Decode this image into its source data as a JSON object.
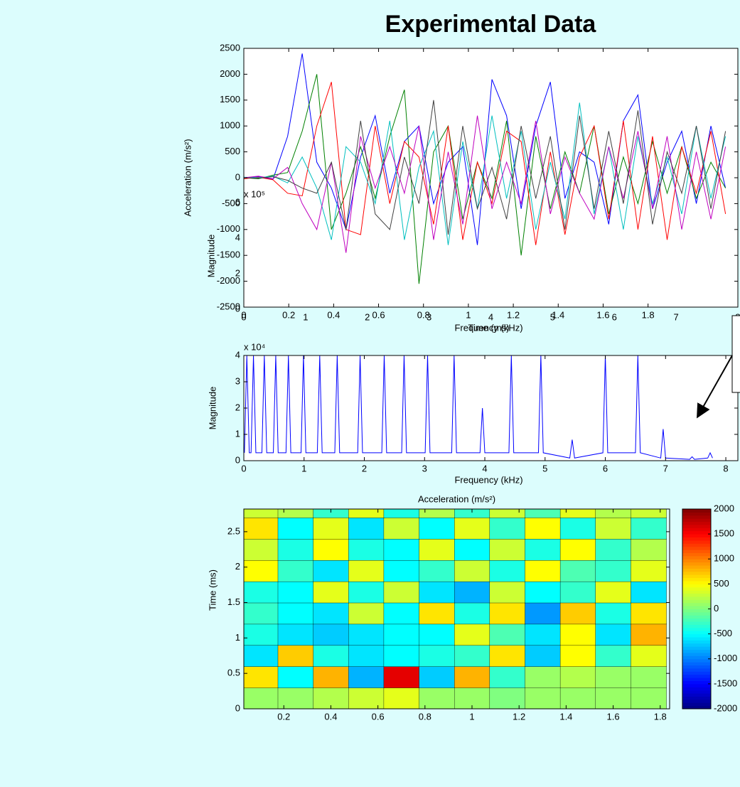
{
  "title": "Experimental Data",
  "chart_data": [
    {
      "type": "line",
      "xlabel": "Time (ms)",
      "ylabel": "Acceleration (m/s²)",
      "box": true,
      "xlim": [
        0,
        2.2
      ],
      "ylim": [
        -2500,
        2500
      ],
      "xticks": [
        0,
        0.2,
        0.4,
        0.6,
        0.8,
        1,
        1.2,
        1.4,
        1.6,
        1.8
      ],
      "yticks": [
        -2500,
        -2000,
        -1500,
        -1000,
        -500,
        0,
        500,
        1000,
        1500,
        2000,
        2500
      ],
      "x": [
        0,
        0.065,
        0.13,
        0.195,
        0.26,
        0.325,
        0.39,
        0.455,
        0.52,
        0.585,
        0.65,
        0.715,
        0.78,
        0.845,
        0.91,
        0.975,
        1.04,
        1.105,
        1.17,
        1.235,
        1.3,
        1.365,
        1.43,
        1.495,
        1.56,
        1.625,
        1.69,
        1.755,
        1.82,
        1.885,
        1.95,
        2.015,
        2.08,
        2.145
      ],
      "series": [
        {
          "color": "#0000ff",
          "values": [
            0,
            20,
            -30,
            800,
            2400,
            300,
            -200,
            -1000,
            400,
            1200,
            -300,
            700,
            1000,
            -500,
            300,
            600,
            -1300,
            1900,
            1200,
            -600,
            1000,
            1850,
            -400,
            500,
            300,
            -900,
            1100,
            1600,
            -600,
            300,
            900,
            -500,
            1000,
            -200
          ]
        },
        {
          "color": "#008000",
          "values": [
            0,
            -20,
            50,
            100,
            900,
            2000,
            -1000,
            -300,
            600,
            -400,
            800,
            1700,
            -2050,
            500,
            1000,
            -800,
            300,
            -400,
            1100,
            -1500,
            800,
            -600,
            500,
            -300,
            1000,
            -700,
            400,
            -500,
            700,
            -300,
            600,
            -400,
            300,
            -200
          ]
        },
        {
          "color": "#ff0000",
          "values": [
            -20,
            10,
            -40,
            -300,
            -350,
            1000,
            1850,
            -1000,
            -1100,
            1000,
            -500,
            700,
            400,
            -900,
            1000,
            -1200,
            300,
            -500,
            900,
            700,
            -1300,
            500,
            -1100,
            400,
            1000,
            -800,
            1100,
            -1000,
            800,
            -1200,
            600,
            -300,
            900,
            -700
          ]
        },
        {
          "color": "#00bfbf",
          "values": [
            10,
            0,
            30,
            -100,
            400,
            -200,
            -1200,
            600,
            300,
            -500,
            1100,
            -1200,
            200,
            900,
            -1300,
            700,
            -600,
            1200,
            -400,
            900,
            -1000,
            300,
            -800,
            1450,
            -700,
            600,
            -1000,
            800,
            -500,
            400,
            -700,
            1000,
            -400,
            800
          ]
        },
        {
          "color": "#bf00bf",
          "values": [
            0,
            30,
            -20,
            200,
            -500,
            -1000,
            300,
            -1450,
            800,
            -200,
            600,
            -300,
            1000,
            -1200,
            500,
            -900,
            1200,
            -600,
            300,
            -500,
            1100,
            -700,
            400,
            -300,
            -800,
            600,
            -400,
            900,
            -600,
            800,
            -1000,
            500,
            -800,
            600
          ]
        },
        {
          "color": "#404040",
          "values": [
            0,
            -10,
            20,
            -50,
            -200,
            -300,
            300,
            -1000,
            1100,
            -700,
            -1000,
            400,
            -500,
            1500,
            -1100,
            1000,
            -600,
            200,
            -800,
            1000,
            -400,
            800,
            -1000,
            1200,
            -600,
            900,
            -500,
            1300,
            -900,
            500,
            -300,
            1000,
            -600,
            900
          ]
        }
      ]
    },
    {
      "type": "line",
      "xlabel": "Frequency (kHz)",
      "ylabel": "Magnitude",
      "y_exponent": "x 10⁵",
      "box": false,
      "xlim": [
        0,
        8
      ],
      "ylim": [
        0,
        6
      ],
      "xticks": [
        0,
        1,
        2,
        3,
        4,
        5,
        6,
        7,
        8
      ],
      "yticks": [
        0,
        2,
        4,
        6
      ],
      "series": []
    },
    {
      "type": "line",
      "xlabel": "Frequency (kHz)",
      "ylabel": "Magnitude",
      "y_exponent": "x 10⁴",
      "box": true,
      "xlim": [
        0,
        8.2
      ],
      "ylim": [
        0,
        4
      ],
      "xticks": [
        0,
        1,
        2,
        3,
        4,
        5,
        6,
        7,
        8
      ],
      "yticks": [
        0,
        1,
        2,
        3,
        4
      ],
      "x": [
        0.01,
        0.05,
        0.09,
        0.12,
        0.16,
        0.2,
        0.3,
        0.34,
        0.38,
        0.49,
        0.53,
        0.57,
        0.7,
        0.74,
        0.78,
        0.95,
        0.99,
        1.03,
        1.22,
        1.26,
        1.3,
        1.51,
        1.55,
        1.59,
        1.89,
        1.93,
        1.97,
        2.29,
        2.33,
        2.37,
        2.62,
        2.66,
        2.7,
        3.01,
        3.05,
        3.09,
        3.45,
        3.49,
        3.53,
        3.92,
        3.96,
        4.0,
        4.4,
        4.44,
        4.48,
        4.89,
        4.93,
        4.97,
        5.41,
        5.45,
        5.49,
        5.96,
        6.0,
        6.04,
        6.5,
        6.54,
        6.58,
        6.92,
        6.96,
        7.0,
        7.4,
        7.44,
        7.48,
        7.7,
        7.74,
        7.78
      ],
      "series": [
        {
          "color": "#0000ff",
          "values": [
            0.3,
            4,
            0.3,
            0.3,
            4,
            0.3,
            0.3,
            4,
            0.3,
            0.3,
            4,
            0.3,
            0.3,
            4,
            0.3,
            0.3,
            4,
            0.3,
            0.3,
            4,
            0.3,
            0.3,
            4,
            0.3,
            0.3,
            4,
            0.3,
            0.3,
            4,
            0.3,
            0.3,
            4,
            0.3,
            0.3,
            4,
            0.3,
            0.3,
            4,
            0.3,
            0.3,
            2,
            0.3,
            0.3,
            4,
            0.3,
            0.3,
            4,
            0.3,
            0.1,
            0.8,
            0.1,
            0.3,
            4,
            0.3,
            0.3,
            4,
            0.3,
            0.1,
            1.2,
            0.1,
            0.05,
            0.15,
            0.05,
            0.1,
            0.3,
            0.1
          ]
        }
      ]
    },
    {
      "type": "contour",
      "title": "Acceleration (m/s²)",
      "ylabel": "Time (ms)",
      "xlim": [
        0.03,
        1.84
      ],
      "ylim": [
        0,
        2.82
      ],
      "xticks": [
        0.2,
        0.4,
        0.6,
        0.8,
        1,
        1.2,
        1.4,
        1.6,
        1.8
      ],
      "yticks": [
        0,
        0.5,
        1,
        1.5,
        2,
        2.5
      ],
      "clim": [
        -2000,
        2000
      ],
      "cticks": [
        -2000,
        -1500,
        -1000,
        -500,
        0,
        500,
        1000,
        1500,
        2000
      ],
      "x": [
        0.1,
        0.25,
        0.4,
        0.55,
        0.7,
        0.85,
        1.0,
        1.15,
        1.3,
        1.45,
        1.6,
        1.75
      ],
      "y": [
        0.15,
        0.45,
        0.75,
        1.05,
        1.35,
        1.65,
        1.95,
        2.25,
        2.55,
        2.85
      ],
      "z": [
        [
          100,
          100,
          200,
          300,
          400,
          100,
          100,
          0,
          100,
          100,
          100,
          100
        ],
        [
          600,
          -500,
          800,
          -800,
          1600,
          -700,
          800,
          -300,
          100,
          200,
          100,
          100
        ],
        [
          -600,
          700,
          -400,
          -600,
          -500,
          -400,
          -300,
          600,
          -700,
          500,
          -300,
          400
        ],
        [
          -400,
          -600,
          -700,
          -600,
          -500,
          -500,
          400,
          -200,
          -600,
          500,
          -600,
          800
        ],
        [
          -300,
          -500,
          -600,
          300,
          -500,
          600,
          -400,
          600,
          -900,
          700,
          -400,
          600
        ],
        [
          -400,
          -500,
          400,
          -400,
          300,
          -600,
          -800,
          300,
          -500,
          -300,
          400,
          -600
        ],
        [
          500,
          -300,
          -600,
          400,
          -500,
          -300,
          300,
          -400,
          500,
          -200,
          -300,
          400
        ],
        [
          300,
          -400,
          500,
          -400,
          -500,
          400,
          -500,
          300,
          -400,
          500,
          -300,
          200
        ],
        [
          600,
          -500,
          400,
          -600,
          300,
          -500,
          400,
          -300,
          500,
          -400,
          300,
          -300
        ],
        [
          300,
          200,
          -300,
          400,
          -400,
          200,
          -300,
          300,
          -200,
          400,
          200,
          300
        ]
      ]
    }
  ]
}
